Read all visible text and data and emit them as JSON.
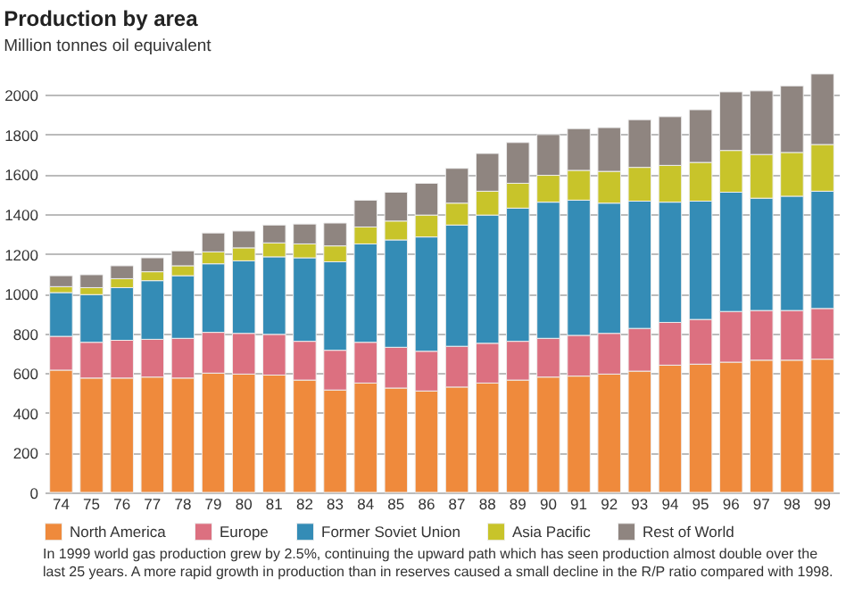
{
  "chart_data": {
    "type": "bar",
    "title": "Production by area",
    "subtitle": "Million tonnes oil equivalent",
    "categories": [
      "74",
      "75",
      "76",
      "77",
      "78",
      "79",
      "80",
      "81",
      "82",
      "83",
      "84",
      "85",
      "86",
      "87",
      "88",
      "89",
      "90",
      "91",
      "92",
      "93",
      "94",
      "95",
      "96",
      "97",
      "98",
      "99"
    ],
    "stacked": true,
    "series": [
      {
        "name": "North America",
        "color": "#ef8a3c",
        "values": [
          615,
          575,
          575,
          580,
          575,
          600,
          595,
          590,
          565,
          515,
          550,
          525,
          510,
          530,
          550,
          565,
          580,
          585,
          595,
          610,
          640,
          645,
          655,
          665,
          665,
          670
        ]
      },
      {
        "name": "Europe",
        "color": "#dc7080",
        "values": [
          170,
          180,
          190,
          190,
          200,
          205,
          205,
          205,
          195,
          200,
          205,
          205,
          200,
          205,
          200,
          195,
          195,
          205,
          205,
          215,
          215,
          225,
          255,
          250,
          250,
          255
        ]
      },
      {
        "name": "Former Soviet Union",
        "color": "#348cb6",
        "values": [
          220,
          240,
          265,
          295,
          315,
          345,
          365,
          390,
          420,
          445,
          495,
          540,
          575,
          610,
          645,
          670,
          685,
          680,
          655,
          640,
          605,
          595,
          600,
          565,
          575,
          590
        ]
      },
      {
        "name": "Asia Pacific",
        "color": "#c8c42a",
        "values": [
          30,
          35,
          45,
          45,
          50,
          60,
          65,
          70,
          70,
          80,
          85,
          95,
          110,
          110,
          120,
          125,
          135,
          150,
          160,
          170,
          185,
          195,
          210,
          220,
          220,
          235
        ]
      },
      {
        "name": "Rest of World",
        "color": "#8f8580",
        "values": [
          55,
          65,
          65,
          70,
          75,
          95,
          85,
          90,
          100,
          115,
          135,
          145,
          160,
          175,
          190,
          205,
          205,
          210,
          220,
          240,
          245,
          265,
          295,
          320,
          335,
          355
        ]
      }
    ],
    "ylim": [
      0,
      2100
    ],
    "yticks": [
      0,
      200,
      400,
      600,
      800,
      1000,
      1200,
      1400,
      1600,
      1800,
      2000
    ],
    "grid": "y",
    "legend": "bottom",
    "annotations": [
      "In 1999 world gas production grew by 2.5%, continuing the upward path which has seen production almost double over the last 25 years. A more rapid growth in production than in reserves caused a small decline in the R/P ratio compared with 1998."
    ]
  }
}
